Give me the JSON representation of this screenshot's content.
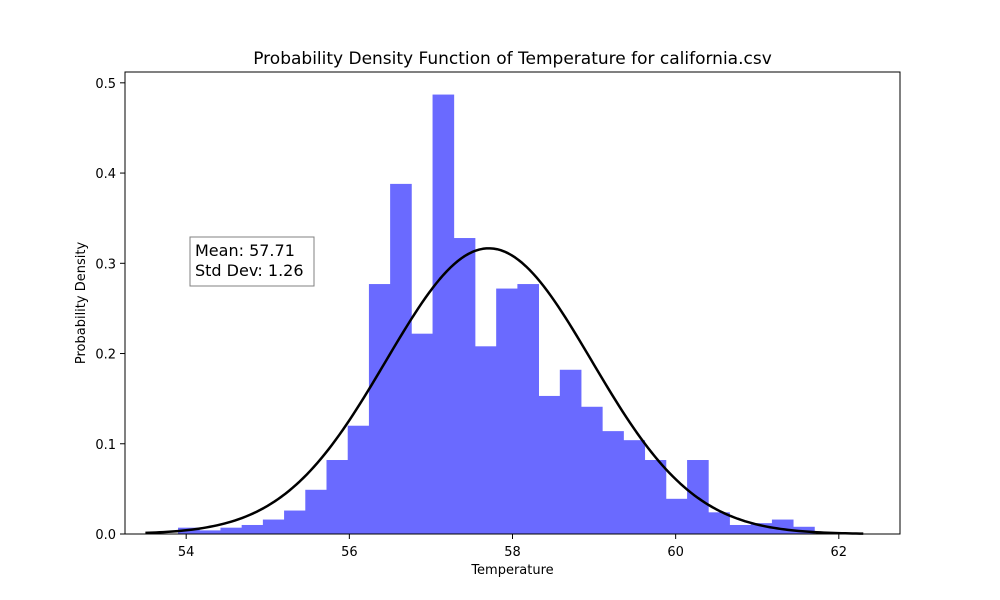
{
  "chart_data": {
    "type": "bar",
    "title": "Probability Density Function of Temperature for california.csv",
    "xlabel": "Temperature",
    "ylabel": "Probability Density",
    "xlim": [
      53.25,
      62.75
    ],
    "ylim": [
      0,
      0.512
    ],
    "xticks": [
      54,
      56,
      58,
      60,
      62
    ],
    "yticks": [
      0.0,
      0.1,
      0.2,
      0.3,
      0.4,
      0.5
    ],
    "grid": false,
    "bin_edges": [
      53.9,
      54.16,
      54.42,
      54.68,
      54.94,
      55.2,
      55.46,
      55.72,
      55.98,
      56.24,
      56.5,
      56.76,
      57.02,
      57.28,
      57.54,
      57.8,
      58.06,
      58.32,
      58.58,
      58.84,
      59.1,
      59.36,
      59.62,
      59.88,
      60.14,
      60.4,
      60.66,
      60.92,
      61.18,
      61.44,
      61.7,
      61.96
    ],
    "values": [
      0.007,
      0.004,
      0.007,
      0.01,
      0.016,
      0.026,
      0.049,
      0.082,
      0.12,
      0.277,
      0.388,
      0.222,
      0.487,
      0.328,
      0.208,
      0.272,
      0.277,
      0.153,
      0.182,
      0.141,
      0.114,
      0.104,
      0.082,
      0.039,
      0.082,
      0.024,
      0.01,
      0.012,
      0.016,
      0.008,
      0.0
    ],
    "bar_color": "#6a6aff",
    "curve": {
      "mean": 57.71,
      "std": 1.26,
      "x_range": [
        53.5,
        62.3
      ],
      "color": "#000000"
    },
    "annotation": {
      "line1": "Mean: 57.71",
      "line2": "Std Dev: 1.26"
    }
  }
}
